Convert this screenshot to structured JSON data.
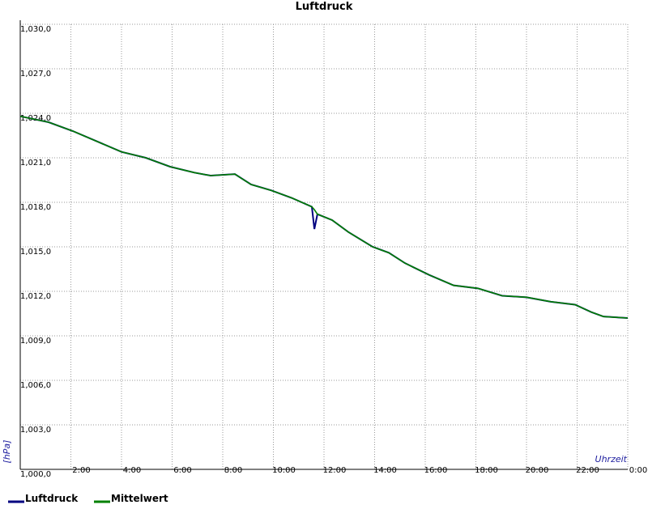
{
  "chart_data": {
    "type": "line",
    "title": "Luftdruck",
    "y_label": "[hPa]",
    "x_label": "Uhrzeit",
    "x": [
      0,
      1.12,
      2.08,
      3.04,
      4,
      4.96,
      5.92,
      6.88,
      7.52,
      8.48,
      9.12,
      9.92,
      10.72,
      11.52,
      11.62,
      11.74,
      12.32,
      12.96,
      13.92,
      14.56,
      15.2,
      16.16,
      17.12,
      18.08,
      19.04,
      20,
      20.96,
      21.92,
      22.56,
      23.04,
      24
    ],
    "series": [
      {
        "name": "Luftdruck",
        "color": "#000080",
        "values": [
          1023.8,
          1023.4,
          1022.8,
          1022.1,
          1021.4,
          1021.0,
          1020.4,
          1020.0,
          1019.8,
          1019.9,
          1019.2,
          1018.8,
          1018.3,
          1017.7,
          1016.2,
          1017.2,
          1016.8,
          1016.0,
          1015.0,
          1014.6,
          1013.9,
          1013.1,
          1012.4,
          1012.2,
          1011.7,
          1011.6,
          1011.3,
          1011.1,
          1010.6,
          1010.3,
          1010.2
        ]
      },
      {
        "name": "Mittelwert",
        "color": "#008000",
        "values": [
          1023.8,
          1023.4,
          1022.8,
          1022.1,
          1021.4,
          1021.0,
          1020.4,
          1020.0,
          1019.8,
          1019.9,
          1019.2,
          1018.8,
          1018.3,
          1017.7,
          1017.5,
          1017.2,
          1016.8,
          1016.0,
          1015.0,
          1014.6,
          1013.9,
          1013.1,
          1012.4,
          1012.2,
          1011.7,
          1011.6,
          1011.3,
          1011.1,
          1010.6,
          1010.3,
          1010.2
        ]
      }
    ],
    "xlim": [
      0,
      24
    ],
    "xticks": [
      {
        "value": 2,
        "label": "2:00"
      },
      {
        "value": 4,
        "label": "4:00"
      },
      {
        "value": 6,
        "label": "6:00"
      },
      {
        "value": 8,
        "label": "8:00"
      },
      {
        "value": 10,
        "label": "10:00"
      },
      {
        "value": 12,
        "label": "12:00"
      },
      {
        "value": 14,
        "label": "14:00"
      },
      {
        "value": 16,
        "label": "16:00"
      },
      {
        "value": 18,
        "label": "18:00"
      },
      {
        "value": 20,
        "label": "20:00"
      },
      {
        "value": 22,
        "label": "22:00"
      },
      {
        "value": 24,
        "label": "0:00"
      }
    ],
    "ylim": [
      1000,
      1030
    ],
    "yticks": [
      {
        "value": 1000,
        "label": "1,000,0"
      },
      {
        "value": 1003,
        "label": "1,003,0"
      },
      {
        "value": 1006,
        "label": "1,006,0"
      },
      {
        "value": 1009,
        "label": "1,009,0"
      },
      {
        "value": 1012,
        "label": "1,012,0"
      },
      {
        "value": 1015,
        "label": "1,015,0"
      },
      {
        "value": 1018,
        "label": "1,018,0"
      },
      {
        "value": 1021,
        "label": "1,021,0"
      },
      {
        "value": 1024,
        "label": "1,024,0"
      },
      {
        "value": 1027,
        "label": "1,027,0"
      },
      {
        "value": 1030,
        "label": "1,030,0"
      }
    ],
    "grid": true
  }
}
